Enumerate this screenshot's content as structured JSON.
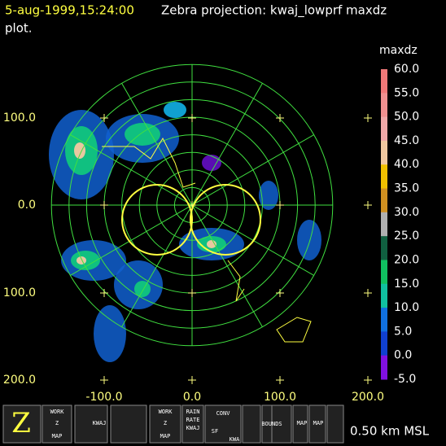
{
  "header": {
    "timestamp": "5-aug-1999,15:24:00",
    "title": "Zebra projection: kwaj_lowprf maxdz",
    "subtitle": "plot."
  },
  "colorbar": {
    "title": "maxdz",
    "labels": [
      "60.0",
      "55.0",
      "50.0",
      "45.0",
      "40.0",
      "35.0",
      "30.0",
      "25.0",
      "20.0",
      "15.0",
      "10.0",
      "5.0",
      "0.0",
      "-5.0"
    ]
  },
  "axes": {
    "y_labels": [
      "100.0",
      "0.0",
      "100.0",
      "200.0"
    ],
    "x_labels": [
      "-100.0",
      "0.0",
      "100.0",
      "200.0"
    ]
  },
  "toolbar": {
    "buttons": [
      {
        "label": "WORK"
      },
      {
        "label": "Z"
      },
      {
        "label": "MAP"
      },
      {
        "label": "KWAJ"
      },
      {
        "label": "WORK"
      },
      {
        "label": "Z"
      },
      {
        "label": "MAP"
      },
      {
        "label": "RAIN"
      },
      {
        "label": "RATE"
      },
      {
        "label": "KWAJ"
      },
      {
        "label": "CONV"
      },
      {
        "label": "SF"
      },
      {
        "label": "KWA"
      },
      {
        "label": "BOUNDS"
      },
      {
        "label": "MAP"
      },
      {
        "label": "MAP"
      }
    ],
    "altitude": "0.50 km MSL"
  }
}
